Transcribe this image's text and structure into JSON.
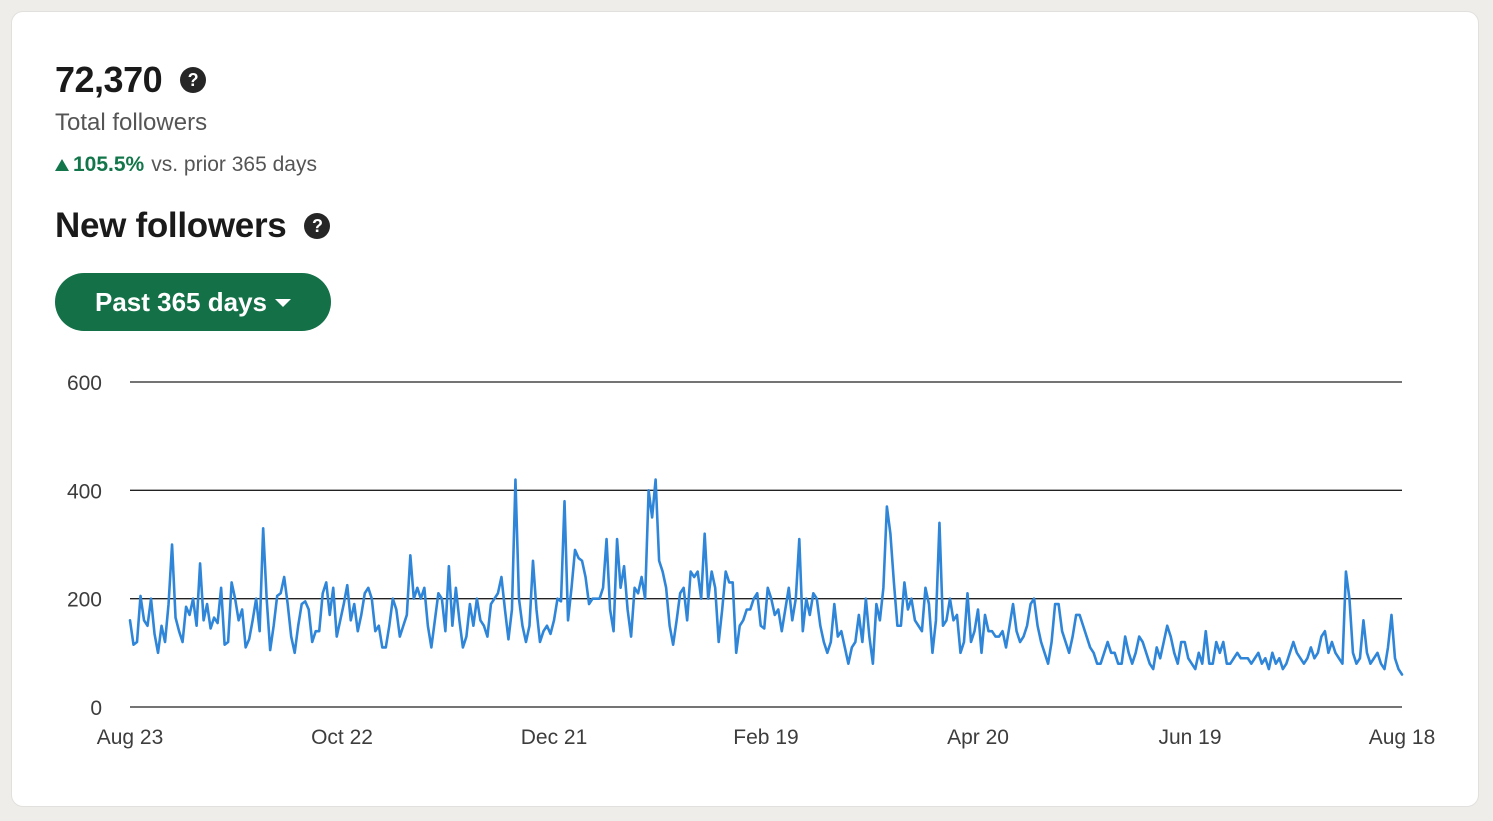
{
  "summary": {
    "total_value": "72,370",
    "total_label": "Total followers",
    "change_value": "105.5%",
    "change_text": "vs. prior 365 days",
    "help_glyph": "?"
  },
  "section": {
    "title": "New followers",
    "range_label": "Past 365 days"
  },
  "colors": {
    "accent_green": "#137047",
    "positive_green": "#12764a",
    "line_blue": "#2f86d9"
  },
  "chart_data": {
    "type": "line",
    "title": "",
    "xlabel": "",
    "ylabel": "",
    "ylim": [
      0,
      600
    ],
    "y_ticks": [
      0,
      200,
      400,
      600
    ],
    "x_tick_labels": [
      "Aug 23",
      "Oct 22",
      "Dec 21",
      "Feb 19",
      "Apr 20",
      "Jun 19",
      "Aug 18"
    ],
    "grid": true,
    "series": [
      {
        "values": [
          160,
          115,
          120,
          205,
          160,
          150,
          200,
          135,
          100,
          150,
          120,
          190,
          300,
          165,
          140,
          120,
          185,
          170,
          200,
          150,
          265,
          160,
          190,
          145,
          165,
          155,
          220,
          115,
          120,
          230,
          200,
          160,
          180,
          110,
          125,
          160,
          200,
          140,
          330,
          200,
          105,
          150,
          205,
          210,
          240,
          190,
          130,
          100,
          150,
          190,
          195,
          180,
          120,
          140,
          140,
          210,
          230,
          170,
          220,
          130,
          160,
          190,
          225,
          160,
          190,
          140,
          170,
          210,
          220,
          200,
          140,
          150,
          110,
          110,
          150,
          200,
          180,
          130,
          150,
          170,
          280,
          200,
          220,
          200,
          220,
          150,
          110,
          160,
          210,
          200,
          140,
          260,
          150,
          220,
          160,
          110,
          130,
          190,
          150,
          200,
          160,
          150,
          130,
          190,
          200,
          210,
          240,
          180,
          125,
          180,
          420,
          200,
          150,
          120,
          150,
          270,
          180,
          120,
          140,
          150,
          135,
          160,
          200,
          195,
          380,
          160,
          220,
          290,
          275,
          270,
          240,
          190,
          200,
          200,
          200,
          220,
          310,
          180,
          140,
          310,
          220,
          260,
          180,
          130,
          220,
          210,
          240,
          200,
          400,
          350,
          420,
          270,
          250,
          220,
          150,
          115,
          160,
          210,
          220,
          160,
          250,
          240,
          250,
          200,
          320,
          200,
          250,
          220,
          120,
          180,
          250,
          230,
          230,
          100,
          150,
          160,
          180,
          180,
          200,
          210,
          150,
          145,
          220,
          200,
          170,
          180,
          140,
          180,
          220,
          160,
          200,
          310,
          140,
          200,
          170,
          210,
          200,
          150,
          120,
          100,
          120,
          190,
          130,
          140,
          110,
          80,
          110,
          120,
          170,
          120,
          200,
          130,
          80,
          190,
          160,
          220,
          370,
          320,
          230,
          150,
          150,
          230,
          180,
          200,
          160,
          150,
          140,
          220,
          190,
          100,
          160,
          340,
          150,
          160,
          200,
          160,
          170,
          100,
          120,
          210,
          120,
          140,
          180,
          100,
          170,
          140,
          140,
          130,
          130,
          140,
          110,
          150,
          190,
          140,
          120,
          130,
          150,
          190,
          200,
          150,
          120,
          100,
          80,
          120,
          190,
          190,
          140,
          120,
          100,
          130,
          170,
          170,
          150,
          130,
          110,
          100,
          80,
          80,
          100,
          120,
          100,
          100,
          80,
          80,
          130,
          100,
          80,
          100,
          130,
          120,
          100,
          80,
          70,
          110,
          90,
          120,
          150,
          130,
          100,
          80,
          120,
          120,
          90,
          80,
          70,
          100,
          80,
          140,
          80,
          80,
          120,
          100,
          120,
          80,
          80,
          90,
          100,
          90,
          90,
          90,
          80,
          90,
          100,
          80,
          90,
          70,
          100,
          80,
          90,
          70,
          80,
          100,
          120,
          100,
          90,
          80,
          90,
          110,
          90,
          100,
          130,
          140,
          100,
          120,
          100,
          90,
          80,
          250,
          200,
          100,
          80,
          90,
          160,
          100,
          80,
          90,
          100,
          80,
          70,
          110,
          170,
          90,
          70,
          60
        ]
      }
    ]
  }
}
